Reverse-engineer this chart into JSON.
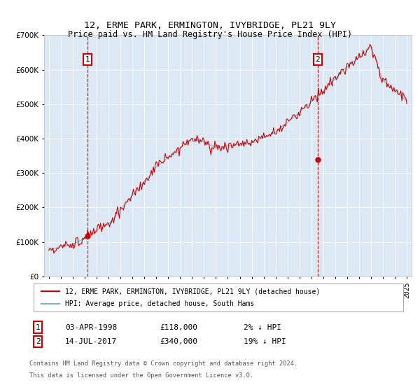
{
  "title": "12, ERME PARK, ERMINGTON, IVYBRIDGE, PL21 9LY",
  "subtitle": "Price paid vs. HM Land Registry's House Price Index (HPI)",
  "legend_line1": "12, ERME PARK, ERMINGTON, IVYBRIDGE, PL21 9LY (detached house)",
  "legend_line2": "HPI: Average price, detached house, South Hams",
  "annotation1_label": "1",
  "annotation1_date": "03-APR-1998",
  "annotation1_price": "£118,000",
  "annotation1_hpi": "2% ↓ HPI",
  "annotation2_label": "2",
  "annotation2_date": "14-JUL-2017",
  "annotation2_price": "£340,000",
  "annotation2_hpi": "19% ↓ HPI",
  "footnote1": "Contains HM Land Registry data © Crown copyright and database right 2024.",
  "footnote2": "This data is licensed under the Open Government Licence v3.0.",
  "background_color": "#dce9f5",
  "hpi_color": "#7fb3d3",
  "price_color": "#cc0000",
  "vline_color": "#cc0000",
  "ylim_min": 0,
  "ylim_max": 700000,
  "transaction1_year": 1998.25,
  "transaction1_value": 118000,
  "transaction2_year": 2017.53,
  "transaction2_value": 340000
}
